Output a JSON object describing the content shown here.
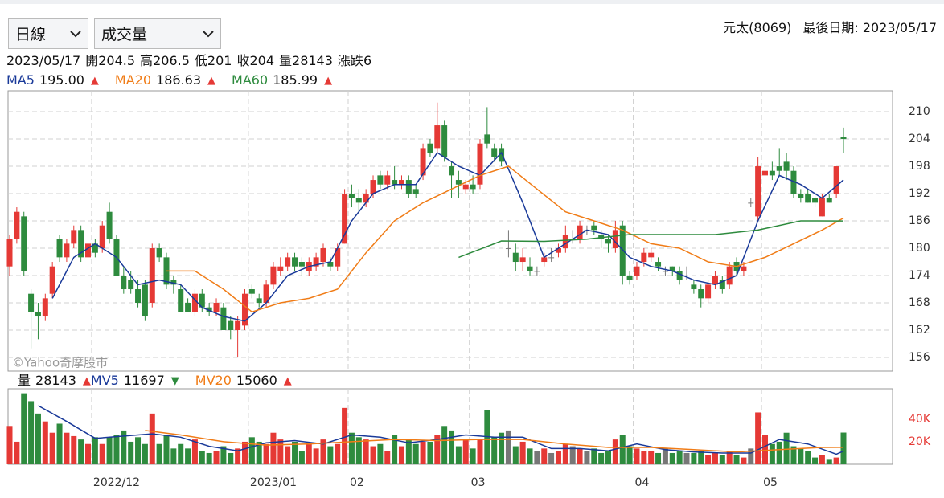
{
  "controls": {
    "period": "日線",
    "indicator": "成交量"
  },
  "stock": "元太(8069)",
  "last_date_label": "最後日期:",
  "last_date": "2023/05/17",
  "info_labels": {
    "open": "開",
    "high": "高",
    "low": "低",
    "close": "收",
    "volume": "量",
    "change": "漲跌"
  },
  "change": 6,
  "watermark": "©Yahoo奇摩股市",
  "chart_data": [
    {
      "type": "candlestick",
      "up_color": "#e53935",
      "down_color": "#2e8b3e",
      "flat_color": "#777777",
      "open": [
        176,
        182,
        187,
        170,
        166,
        165,
        170,
        182,
        178,
        181,
        184,
        178,
        181,
        180,
        188,
        182,
        174,
        173,
        171,
        172,
        168,
        180,
        178,
        173,
        171,
        168,
        166,
        170,
        167,
        166,
        167,
        164,
        162,
        163,
        171,
        169,
        168,
        172,
        175,
        176,
        178,
        177,
        175,
        176,
        177,
        177,
        176,
        181,
        192,
        191,
        190,
        192,
        196,
        194,
        195,
        194,
        195,
        193,
        196,
        203,
        202,
        207,
        198,
        195,
        193,
        194,
        194,
        205,
        202,
        202,
        180,
        179,
        177,
        176,
        175,
        177,
        178,
        179,
        180,
        182,
        182,
        184,
        185,
        183,
        182,
        180,
        185,
        174,
        174,
        177,
        178,
        177,
        175,
        176,
        175,
        174,
        172,
        171,
        169,
        172,
        173,
        172,
        177,
        175,
        190,
        187,
        196,
        197,
        198,
        199,
        197,
        192,
        192,
        191,
        187,
        191,
        192,
        204.5
      ],
      "high": [
        183,
        189,
        188,
        171,
        168,
        170,
        177,
        183,
        182,
        185,
        185,
        182,
        182,
        186,
        190,
        183,
        176,
        175,
        173,
        173,
        181,
        181,
        179,
        174,
        172,
        169,
        171,
        171,
        168,
        169,
        168,
        165,
        165,
        171,
        172,
        170,
        173,
        177,
        178,
        179,
        179,
        178,
        178,
        179,
        181,
        178,
        181,
        193,
        194,
        193,
        193,
        196,
        197,
        197,
        198,
        196,
        196,
        194,
        203,
        204,
        212,
        208,
        199,
        197,
        195,
        196,
        204,
        211,
        203,
        203,
        184,
        181,
        180,
        178,
        176,
        179,
        180,
        181,
        185,
        184,
        186,
        185,
        186,
        184,
        183,
        186,
        186,
        175,
        177,
        180,
        180,
        178,
        176,
        176,
        176,
        176,
        173,
        172,
        173,
        175,
        174,
        177,
        178,
        177,
        191,
        200,
        203,
        199,
        202,
        201,
        198,
        193,
        193,
        192,
        192,
        192,
        198,
        206.5
      ],
      "low": [
        174,
        181,
        174,
        158,
        160,
        164,
        169,
        177,
        177,
        180,
        177,
        177,
        178,
        179,
        181,
        174,
        170,
        170,
        167,
        164,
        167,
        177,
        171,
        170,
        166,
        166,
        165,
        166,
        165,
        165,
        162,
        160,
        156,
        162,
        169,
        167,
        167,
        171,
        174,
        175,
        175,
        174,
        174,
        175,
        176,
        175,
        175,
        181,
        189,
        188,
        189,
        191,
        193,
        193,
        193,
        193,
        191,
        191,
        195,
        200,
        201,
        199,
        191,
        191,
        192,
        192,
        193,
        202,
        199,
        198,
        178,
        175,
        175,
        174,
        174,
        176,
        177,
        178,
        179,
        181,
        181,
        183,
        183,
        180,
        179,
        179,
        172,
        172,
        173,
        176,
        177,
        175,
        174,
        174,
        172,
        173,
        170,
        167,
        168,
        171,
        170,
        171,
        174,
        174,
        189,
        186,
        195,
        195,
        196,
        195,
        191,
        190,
        190,
        189,
        187,
        190,
        191,
        201
      ],
      "close": [
        182,
        188,
        175,
        166,
        165,
        169,
        176,
        178,
        181,
        184,
        178,
        181,
        179,
        185,
        182,
        174,
        171,
        171,
        168,
        165,
        180,
        178,
        172,
        172,
        166,
        166,
        170,
        167,
        166,
        168,
        162,
        162,
        164,
        170,
        170,
        168,
        172,
        176,
        176,
        178,
        176,
        176,
        177,
        178,
        180,
        176,
        180,
        192,
        191,
        190,
        192,
        195,
        194,
        196,
        194,
        195,
        192,
        192,
        202,
        201,
        207,
        200,
        196,
        194,
        194,
        193,
        203,
        203,
        200,
        199,
        180,
        177,
        178,
        175,
        175,
        178,
        178,
        180,
        183,
        182,
        185,
        184,
        184,
        182,
        181,
        184,
        174,
        173,
        176,
        179,
        179,
        176,
        175,
        175,
        173,
        174,
        171,
        169,
        172,
        174,
        171,
        176,
        175,
        176,
        190,
        198,
        197,
        196,
        197,
        197,
        192,
        191,
        190,
        190,
        191,
        190,
        198,
        204
      ],
      "series": [
        {
          "name": "MA5",
          "color": "#1a3a99",
          "legend_value": {
            "value": 195,
            "label": "195.00"
          },
          "trend": "▲",
          "trend_color": "#e53935",
          "x": [
            6,
            9,
            12,
            15,
            18,
            21,
            24,
            27,
            30,
            33,
            36,
            39,
            42,
            45,
            48,
            51,
            54,
            57,
            60,
            63,
            66,
            69,
            72,
            75,
            78,
            81,
            84,
            87,
            90,
            93,
            96,
            99,
            102,
            105,
            108,
            111,
            114,
            117
          ],
          "values": [
            169,
            178,
            181,
            178,
            172,
            173,
            172,
            167,
            165,
            164,
            168,
            174,
            176,
            177,
            186,
            192,
            194,
            194,
            201,
            198,
            196,
            201,
            190,
            178,
            181,
            184,
            183,
            178,
            176,
            175,
            173,
            172,
            174,
            186,
            196,
            194,
            191,
            195
          ]
        },
        {
          "name": "MA20",
          "color": "#f07c17",
          "legend_value": 186.63,
          "trend": "▲",
          "trend_color": "#e53935",
          "x": [
            22,
            26,
            30,
            34,
            38,
            42,
            46,
            50,
            54,
            58,
            62,
            66,
            70,
            74,
            78,
            82,
            86,
            90,
            94,
            98,
            102,
            106,
            110,
            114,
            117
          ],
          "values": [
            175,
            175,
            171,
            166,
            168,
            169,
            171,
            179,
            186,
            190,
            193,
            196,
            198,
            193,
            188,
            186,
            184,
            181,
            180,
            177,
            176,
            178,
            181,
            184,
            186.63
          ]
        },
        {
          "name": "MA60",
          "color": "#2e8b3e",
          "legend_value": 185.99,
          "trend": "▲",
          "trend_color": "#e53935",
          "x": [
            63,
            69,
            75,
            81,
            87,
            93,
            99,
            105,
            111,
            117
          ],
          "values": [
            178,
            181.6,
            181.5,
            182,
            183,
            183,
            183,
            184,
            186,
            185.99
          ]
        }
      ],
      "ylim": [
        153,
        214.6
      ],
      "yticks": [
        156,
        162,
        168,
        174,
        180,
        186,
        192,
        198,
        204,
        210
      ],
      "grid": true,
      "xticks": [
        {
          "value": 12,
          "label": "2022/12"
        },
        {
          "value": 34,
          "label": "2023/01"
        },
        {
          "value": 48,
          "label": "02"
        },
        {
          "value": 65,
          "label": "03"
        },
        {
          "value": 88,
          "label": "04"
        },
        {
          "value": 106,
          "label": "05"
        }
      ]
    },
    {
      "type": "bar",
      "trend": "▲",
      "trend_color": "#e53935",
      "tick_color": "#e53935",
      "values": [
        34000,
        20000,
        63000,
        56000,
        45000,
        38000,
        28000,
        36000,
        28000,
        25000,
        22000,
        18000,
        24000,
        18000,
        24000,
        26000,
        30000,
        20000,
        24000,
        18000,
        45000,
        18000,
        26000,
        14000,
        18000,
        14000,
        22000,
        12000,
        10000,
        12000,
        16000,
        10000,
        14000,
        20000,
        24000,
        20000,
        18000,
        28000,
        22000,
        16000,
        20000,
        12000,
        18000,
        14000,
        22000,
        16000,
        18000,
        50000,
        28000,
        24000,
        22000,
        16000,
        18000,
        12000,
        26000,
        16000,
        22000,
        18000,
        20000,
        20000,
        26000,
        34000,
        30000,
        16000,
        22000,
        14000,
        22000,
        48000,
        24000,
        28000,
        30000,
        16000,
        20000,
        14000,
        12000,
        14000,
        10000,
        12000,
        18000,
        16000,
        14000,
        12000,
        14000,
        10000,
        12000,
        22000,
        26000,
        16000,
        14000,
        12000,
        12000,
        10000,
        14000,
        10000,
        12000,
        10000,
        10000,
        12000,
        8000,
        10000,
        8000,
        12000,
        8000,
        6000,
        14000,
        46000,
        26000,
        18000,
        20000,
        28000,
        16000,
        14000,
        12000,
        6000,
        8000,
        4000,
        6000,
        28143
      ],
      "series": [
        {
          "name": "MV5",
          "color": "#1a3a99",
          "legend_value": 11697,
          "trend": "▼",
          "trend_color": "#2e8b3e",
          "x": [
            4,
            8,
            12,
            16,
            20,
            24,
            28,
            32,
            36,
            40,
            44,
            48,
            52,
            56,
            60,
            64,
            68,
            72,
            76,
            80,
            84,
            88,
            92,
            96,
            100,
            104,
            108,
            112,
            116,
            117
          ],
          "values": [
            52000,
            38000,
            23000,
            25000,
            27000,
            24000,
            16000,
            12000,
            19000,
            21000,
            18000,
            26000,
            24000,
            19000,
            22000,
            26000,
            24000,
            24000,
            14000,
            14000,
            12000,
            18000,
            13000,
            11000,
            10000,
            10000,
            22000,
            18000,
            9000,
            11697
          ]
        },
        {
          "name": "MV20",
          "color": "#f07c17",
          "legend_value": 15060,
          "trend": "▲",
          "trend_color": "#e53935",
          "x": [
            19,
            24,
            30,
            36,
            42,
            48,
            54,
            60,
            66,
            72,
            78,
            84,
            90,
            96,
            102,
            108,
            114,
            117
          ],
          "values": [
            30000,
            26000,
            20000,
            17000,
            18000,
            20000,
            22000,
            21000,
            22000,
            22000,
            18000,
            15000,
            15000,
            13000,
            11000,
            13000,
            15000,
            15060
          ]
        }
      ],
      "ylim": [
        0,
        67000
      ],
      "yticks": [
        {
          "value": 20000,
          "label": "20K"
        },
        {
          "value": 40000,
          "label": "40K"
        }
      ]
    }
  ]
}
